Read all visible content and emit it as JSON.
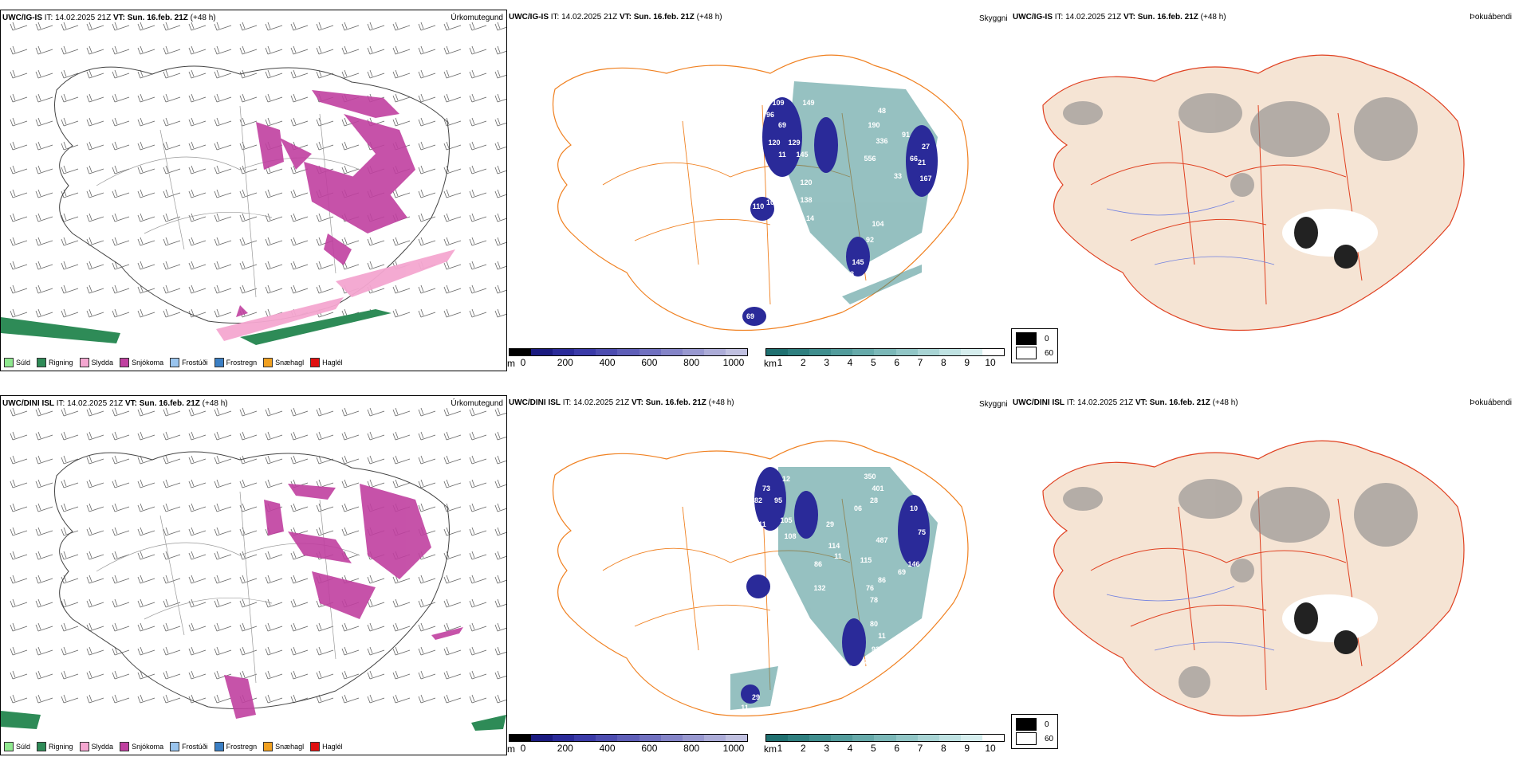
{
  "rows": [
    {
      "model": "UWC/IG-IS",
      "it_label": "IT:",
      "it_value": "14.02.2025 21Z",
      "vt_label": "VT:",
      "vt_value": "Sun. 16.feb. 21Z",
      "lead": "(+48 h)",
      "precip_title": "Úrkomutegund",
      "vis_title": "Skyggni",
      "fog_title": "Þokuábendi"
    },
    {
      "model": "UWC/DINI ISL",
      "it_label": "IT:",
      "it_value": "14.02.2025 21Z",
      "vt_label": "VT:",
      "vt_value": "Sun. 16.feb. 21Z",
      "lead": "(+48 h)",
      "precip_title": "Úrkomutegund",
      "vis_title": "Skyggni",
      "fog_title": "Þokuábendi"
    }
  ],
  "precip_legend": [
    {
      "label": "Súld",
      "color": "#8fe88f"
    },
    {
      "label": "Rigning",
      "color": "#2e8b57"
    },
    {
      "label": "Slydda",
      "color": "#f4a6d0"
    },
    {
      "label": "Snjókoma",
      "color": "#c040a0"
    },
    {
      "label": "Frostúði",
      "color": "#99c4ee"
    },
    {
      "label": "Frostregn",
      "color": "#3b7fc4"
    },
    {
      "label": "Snæhagl",
      "color": "#f0a020"
    },
    {
      "label": "Haglél",
      "color": "#e01010"
    }
  ],
  "height_bar": {
    "unit": "m",
    "ticks": [
      "0",
      "200",
      "400",
      "600",
      "800",
      "1000"
    ],
    "colors": [
      "#000000",
      "#1a1a80",
      "#2a2a99",
      "#3a3aa8",
      "#4c4cb0",
      "#5e5eb8",
      "#7070c0",
      "#8484c8",
      "#9898d0",
      "#acacd8",
      "#c0c0e0"
    ]
  },
  "km_bar": {
    "unit": "km",
    "ticks": [
      "1",
      "2",
      "3",
      "4",
      "5",
      "6",
      "7",
      "8",
      "9",
      "10"
    ],
    "colors": [
      "#1f7070",
      "#2e7f7f",
      "#3f8e8e",
      "#529c9c",
      "#66aaaa",
      "#7bb8b8",
      "#91c6c6",
      "#a8d4d4",
      "#bfe2e2",
      "#d6eeee",
      "#ffffff"
    ]
  },
  "fog_box": [
    {
      "label": "0",
      "color": "#000000"
    },
    {
      "label": "60",
      "color": "#ffffff"
    }
  ],
  "vis_labels_top": [
    "109",
    "96",
    "69",
    "120",
    "129",
    "145",
    "11",
    "149",
    "48",
    "190",
    "336",
    "91",
    "556",
    "66",
    "27",
    "21",
    "120",
    "167",
    "33",
    "138",
    "110",
    "10",
    "16",
    "14",
    "104",
    "92",
    "145",
    "68",
    "69"
  ],
  "vis_labels_bottom": [
    "73",
    "82",
    "95",
    "12",
    "105",
    "11",
    "108",
    "350",
    "401",
    "28",
    "06",
    "29",
    "114",
    "487",
    "10",
    "86",
    "11",
    "115",
    "75",
    "132",
    "146",
    "69",
    "86",
    "76",
    "78",
    "80",
    "11",
    "93",
    "72",
    "12",
    "57",
    "11",
    "65",
    "29"
  ]
}
